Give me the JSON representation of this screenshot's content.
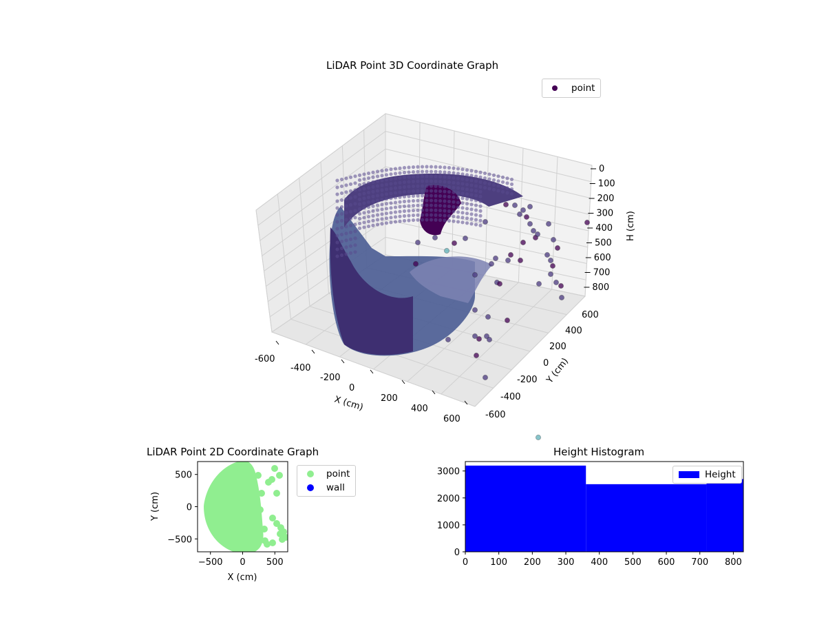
{
  "chart_data": [
    {
      "type": "scatter",
      "title": "LiDAR Point 3D Coordinate Graph",
      "xlabel": "X (cm)",
      "ylabel": "Y (cm)",
      "zlabel": "H (cm)",
      "x_ticks": [
        "-600",
        "-400",
        "-200",
        "0",
        "200",
        "400",
        "600"
      ],
      "y_ticks": [
        "-600",
        "-400",
        "-200",
        "0",
        "200",
        "400",
        "600"
      ],
      "z_ticks": [
        "0",
        "100",
        "200",
        "300",
        "400",
        "500",
        "600",
        "700",
        "800"
      ],
      "xlim": [
        -650,
        650
      ],
      "ylim": [
        -650,
        650
      ],
      "zlim": [
        0,
        830
      ],
      "z_inverted": true,
      "legend": {
        "label": "point",
        "color": "#440154",
        "placement": "top-right"
      },
      "colors": {
        "dark": "#440154",
        "mid": "#3b4f8a",
        "light": "#5fb0b8"
      }
    },
    {
      "type": "scatter",
      "title": "LiDAR Point 2D Coordinate Graph",
      "xlabel": "X (cm)",
      "ylabel": "Y (cm)",
      "x_ticks": [
        "−500",
        "0",
        "500"
      ],
      "y_ticks": [
        "500",
        "0",
        "−500"
      ],
      "xlim": [
        -700,
        700
      ],
      "ylim": [
        -700,
        700
      ],
      "series": [
        {
          "name": "point",
          "color": "#90ee90"
        },
        {
          "name": "wall",
          "color": "#0000ff"
        }
      ],
      "legend_placement": "outside-right"
    },
    {
      "type": "bar",
      "title": "Height Histogram",
      "x_ticks": [
        "0",
        "100",
        "200",
        "300",
        "400",
        "500",
        "600",
        "700",
        "800"
      ],
      "y_ticks": [
        "0",
        "1000",
        "2000",
        "3000"
      ],
      "xlim": [
        0,
        830
      ],
      "ylim": [
        0,
        3350
      ],
      "series": [
        {
          "name": "Height",
          "color": "#0000ff"
        }
      ],
      "bins": [
        {
          "x0": 0,
          "x1": 360,
          "count": 3200
        },
        {
          "x0": 360,
          "x1": 720,
          "count": 2510
        },
        {
          "x0": 720,
          "x1": 830,
          "count": 2700
        }
      ],
      "legend_placement": "top-right"
    }
  ]
}
